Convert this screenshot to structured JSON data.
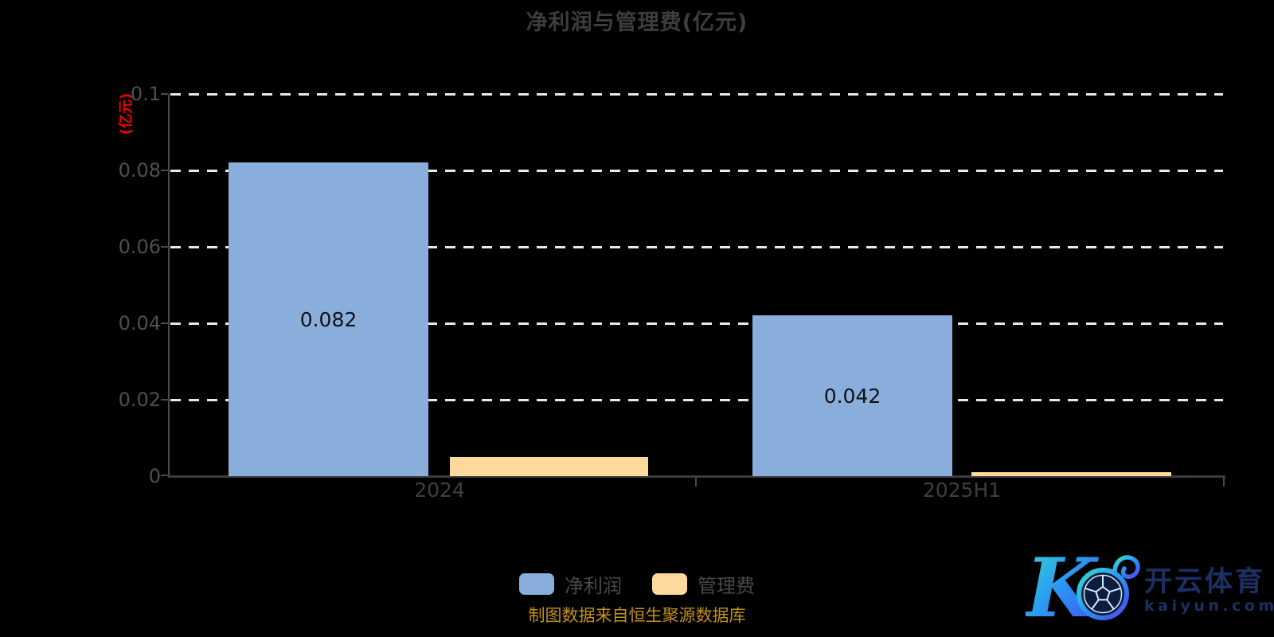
{
  "title": "净利润与管理费(亿元)",
  "y_axis": {
    "unit_label": "(亿元)",
    "ticks": [
      "0.1",
      "0.08",
      "0.06",
      "0.04",
      "0.02",
      "0"
    ]
  },
  "x_axis": {
    "categories": [
      "2024",
      "2025H1"
    ]
  },
  "chart_data": {
    "type": "bar",
    "title": "净利润与管理费(亿元)",
    "categories": [
      "2024",
      "2025H1"
    ],
    "series": [
      {
        "name": "净利润",
        "color": "#8aaedc",
        "values": [
          0.082,
          0.042
        ],
        "data_labels": [
          "0.082",
          "0.042"
        ]
      },
      {
        "name": "管理费",
        "color": "#ffd99c",
        "values": [
          0.005,
          0.001
        ],
        "data_labels": [
          "",
          ""
        ]
      }
    ],
    "ylabel": "(亿元)",
    "ylim": [
      0,
      0.1
    ],
    "ytick_labels": [
      "0.1",
      "0.08",
      "0.06",
      "0.04",
      "0.02",
      "0"
    ],
    "grid": "horizontal-dashed-white",
    "legend_position": "bottom-center"
  },
  "legend": {
    "items": [
      {
        "label": "净利润",
        "color": "#8aaedc"
      },
      {
        "label": "管理费",
        "color": "#ffd99c"
      }
    ]
  },
  "footer": {
    "source_text": "制图数据来自恒生聚源数据库"
  },
  "logo": {
    "monogram": "K",
    "brand_name_cn": "开云体育",
    "domain": "kaiyun.com"
  },
  "colors": {
    "background": "#000000",
    "bar_blue": "#8aaedc",
    "bar_yellow": "#ffd99c",
    "title_gray": "#3d3d3d",
    "axis_unit_red": "#ee0000",
    "footer_gold": "#c29018",
    "logo_navy": "#1c2f63"
  }
}
